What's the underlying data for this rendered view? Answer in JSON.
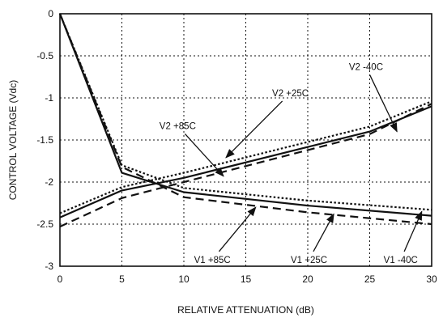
{
  "chart_data": {
    "type": "line",
    "xlabel": "RELATIVE ATTENUATION (dB)",
    "ylabel": "CONTROL VOLTAGE (Vdc)",
    "xlim": [
      0,
      30
    ],
    "ylim": [
      -3,
      0
    ],
    "x_ticks": [
      "0",
      "5",
      "10",
      "15",
      "20",
      "25",
      "30"
    ],
    "y_ticks": [
      "0",
      "-0.5",
      "-1",
      "-1.5",
      "-2",
      "-2.5",
      "-3"
    ],
    "grid": true,
    "series": [
      {
        "name": "V1 +85C",
        "style": "solid",
        "x": [
          0,
          5,
          10,
          20,
          30
        ],
        "y": [
          0,
          -1.89,
          -2.12,
          -2.28,
          -2.4
        ]
      },
      {
        "name": "V1 +25C",
        "style": "dashed",
        "x": [
          0,
          5,
          10,
          20,
          30
        ],
        "y": [
          0,
          -1.82,
          -2.18,
          -2.36,
          -2.5
        ]
      },
      {
        "name": "V1 -40C",
        "style": "dotted",
        "x": [
          0,
          5,
          10,
          20,
          30
        ],
        "y": [
          0,
          -1.8,
          -2.07,
          -2.22,
          -2.33
        ]
      },
      {
        "name": "V2 +85C",
        "style": "solid",
        "x": [
          0,
          5,
          10,
          25,
          30
        ],
        "y": [
          -2.42,
          -2.1,
          -1.95,
          -1.4,
          -1.1
        ]
      },
      {
        "name": "V2 +25C",
        "style": "dashed",
        "x": [
          0,
          5,
          10,
          25,
          30
        ],
        "y": [
          -2.53,
          -2.19,
          -2.0,
          -1.43,
          -1.07
        ]
      },
      {
        "name": "V2 -40C",
        "style": "dotted",
        "x": [
          0,
          5,
          10,
          25,
          30
        ],
        "y": [
          -2.37,
          -2.06,
          -1.89,
          -1.34,
          -1.04
        ]
      }
    ],
    "annotations": [
      {
        "text": "V2 -40C",
        "x": 24.7,
        "y": -0.67,
        "arrow_to": [
          27.2,
          -1.4
        ]
      },
      {
        "text": "V2 +25C",
        "x": 18.6,
        "y": -0.98,
        "arrow_to": [
          13.4,
          -1.71
        ]
      },
      {
        "text": "V2 +85C",
        "x": 9.5,
        "y": -1.37,
        "arrow_to": [
          13.2,
          -1.93
        ]
      },
      {
        "text": "V1 +85C",
        "x": 12.3,
        "y": -2.96,
        "arrow_to": [
          15.8,
          -2.3
        ]
      },
      {
        "text": "V1 +25C",
        "x": 20.1,
        "y": -2.96,
        "arrow_to": [
          22.1,
          -2.38
        ]
      },
      {
        "text": "V1 -40C",
        "x": 27.5,
        "y": -2.96,
        "arrow_to": [
          29.2,
          -2.35
        ]
      }
    ]
  }
}
